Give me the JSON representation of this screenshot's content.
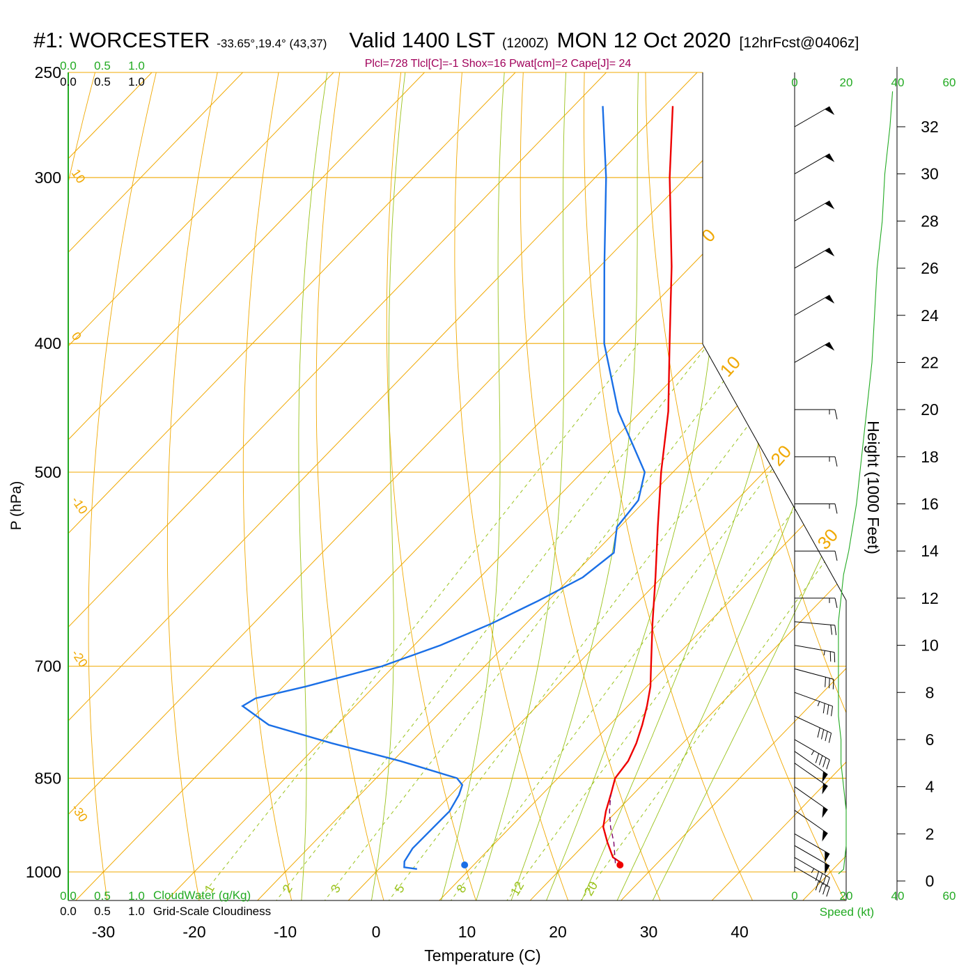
{
  "header": {
    "station": "#1: WORCESTER",
    "coords": "-33.65°,19.4° (43,37)",
    "valid": "Valid 1400 LST",
    "zulu": "(1200Z)",
    "date": "MON 12 Oct 2020",
    "forecast": "[12hrFcst@0406z]",
    "params": "Plcl=728 Tlcl[C]=-1 Shox=16 Pwat[cm]=2 Cape[J]= 24"
  },
  "colors": {
    "temperature": "#ee0000",
    "dewpoint": "#1a6fe6",
    "isotherm": "#f0a800",
    "dry_adiabat": "#f0a800",
    "moist_adiabat": "#99c21a",
    "mixing_ratio": "#99c21a",
    "parcel": "#7a0066",
    "cloud_scale": "#22aa22",
    "wind_barb": "#000000",
    "wind_speed_profile": "#22aa22",
    "isobar": "#f0a800"
  },
  "chart_data": {
    "type": "skew-t",
    "xlabel": "Temperature (C)",
    "ylabel": "P (hPa)",
    "right_axis_label": "Height (1000 Feet)",
    "pressure_ticks": [
      250,
      300,
      400,
      500,
      700,
      850,
      1000
    ],
    "temperature_ticks": [
      -30,
      -20,
      -10,
      0,
      10,
      20,
      30,
      40
    ],
    "height_ticks": [
      "0",
      "2",
      "4",
      "6",
      "8",
      "10",
      "12",
      "14",
      "16",
      "18",
      "20",
      "22",
      "24",
      "26",
      "28",
      "30",
      "32"
    ],
    "isotherm_labels": [
      "-30",
      "-20",
      "-10",
      "0",
      "10",
      "20",
      "30"
    ],
    "isotherm_label_text": {
      "-30": "-30",
      "-20": "-20",
      "-10": "-10",
      "0": "0",
      "10": "10",
      "20": "20",
      "30": "30"
    },
    "mixing_ratio_labels": [
      "1",
      "2",
      "3",
      "5",
      "8",
      "12",
      "20"
    ],
    "cloud_scale": {
      "top_green_labels": [
        "0.0",
        "0.5",
        "1.0"
      ],
      "top_black_labels": [
        "0.0",
        "0.5",
        "1.0"
      ],
      "bottom_green_labels": [
        "0.0",
        "0.5",
        "1.0"
      ],
      "bottom_black_labels": [
        "0.0",
        "0.5",
        "1.0"
      ],
      "cloudwater_label": "CloudWater (g/Kg)",
      "cloudiness_label": "Grid-Scale Cloudiness"
    },
    "wind_speed_axis": {
      "ticks": [
        "0",
        "20",
        "40",
        "60"
      ],
      "label": "Speed (kt)"
    },
    "temperature_profile": [
      {
        "p": 985,
        "t": 26.1
      },
      {
        "p": 975,
        "t": 24.5
      },
      {
        "p": 950,
        "t": 22.3
      },
      {
        "p": 925,
        "t": 20.2
      },
      {
        "p": 900,
        "t": 18.8
      },
      {
        "p": 875,
        "t": 17.6
      },
      {
        "p": 850,
        "t": 16.3
      },
      {
        "p": 825,
        "t": 15.9
      },
      {
        "p": 800,
        "t": 14.9
      },
      {
        "p": 775,
        "t": 13.6
      },
      {
        "p": 750,
        "t": 12.1
      },
      {
        "p": 725,
        "t": 10.4
      },
      {
        "p": 700,
        "t": 8.3
      },
      {
        "p": 650,
        "t": 3.9
      },
      {
        "p": 600,
        "t": -0.7
      },
      {
        "p": 550,
        "t": -5.8
      },
      {
        "p": 500,
        "t": -11.3
      },
      {
        "p": 450,
        "t": -17.0
      },
      {
        "p": 400,
        "t": -24.1
      },
      {
        "p": 350,
        "t": -32.1
      },
      {
        "p": 300,
        "t": -41.8
      },
      {
        "p": 265,
        "t": -49.1
      }
    ],
    "dewpoint_profile": [
      {
        "p": 995,
        "t": 4.2
      },
      {
        "p": 992,
        "t": 2.6
      },
      {
        "p": 982,
        "t": 2.0
      },
      {
        "p": 960,
        "t": 1.5
      },
      {
        "p": 900,
        "t": 1.6
      },
      {
        "p": 875,
        "t": 0.9
      },
      {
        "p": 860,
        "t": 0.2
      },
      {
        "p": 850,
        "t": -1.1
      },
      {
        "p": 825,
        "t": -9.2
      },
      {
        "p": 800,
        "t": -18.6
      },
      {
        "p": 775,
        "t": -27.5
      },
      {
        "p": 750,
        "t": -32.4
      },
      {
        "p": 740,
        "t": -31.8
      },
      {
        "p": 725,
        "t": -27.5
      },
      {
        "p": 700,
        "t": -21.3
      },
      {
        "p": 675,
        "t": -17.1
      },
      {
        "p": 650,
        "t": -13.8
      },
      {
        "p": 625,
        "t": -11.1
      },
      {
        "p": 600,
        "t": -8.7
      },
      {
        "p": 575,
        "t": -7.9
      },
      {
        "p": 550,
        "t": -10.3
      },
      {
        "p": 525,
        "t": -10.8
      },
      {
        "p": 500,
        "t": -13.1
      },
      {
        "p": 450,
        "t": -22.5
      },
      {
        "p": 400,
        "t": -31.3
      },
      {
        "p": 350,
        "t": -39.5
      },
      {
        "p": 300,
        "t": -48.8
      },
      {
        "p": 265,
        "t": -56.8
      }
    ],
    "parcel_path": [
      {
        "p": 985,
        "t": 25.4
      },
      {
        "p": 950,
        "t": 23.0
      },
      {
        "p": 925,
        "t": 21.0
      },
      {
        "p": 900,
        "t": 19.2
      },
      {
        "p": 875,
        "t": 17.6
      }
    ],
    "surface_temperature": {
      "p": 988,
      "t": 26.1
    },
    "surface_dewpoint": {
      "p": 988,
      "t": 9.0
    },
    "wind_profile": [
      {
        "h": 0.6,
        "dir": 300,
        "spd": 40
      },
      {
        "h": 1.0,
        "dir": 300,
        "spd": 45
      },
      {
        "h": 1.5,
        "dir": 300,
        "spd": 50
      },
      {
        "h": 2.0,
        "dir": 300,
        "spd": 50
      },
      {
        "h": 3.0,
        "dir": 305,
        "spd": 50
      },
      {
        "h": 4.0,
        "dir": 305,
        "spd": 50
      },
      {
        "h": 5.0,
        "dir": 305,
        "spd": 50
      },
      {
        "h": 5.5,
        "dir": 305,
        "spd": 50
      },
      {
        "h": 6.0,
        "dir": 300,
        "spd": 45
      },
      {
        "h": 7.0,
        "dir": 295,
        "spd": 40
      },
      {
        "h": 8.0,
        "dir": 290,
        "spd": 35
      },
      {
        "h": 9.0,
        "dir": 285,
        "spd": 30
      },
      {
        "h": 10.0,
        "dir": 280,
        "spd": 25
      },
      {
        "h": 11.0,
        "dir": 275,
        "spd": 20
      },
      {
        "h": 12.0,
        "dir": 270,
        "spd": 15
      },
      {
        "h": 14.0,
        "dir": 270,
        "spd": 10
      },
      {
        "h": 16.0,
        "dir": 270,
        "spd": 15
      },
      {
        "h": 18.0,
        "dir": 270,
        "spd": 15
      },
      {
        "h": 20.0,
        "dir": 270,
        "spd": 15
      },
      {
        "h": 22.0,
        "dir": 240,
        "spd": 50
      },
      {
        "h": 24.0,
        "dir": 240,
        "spd": 50
      },
      {
        "h": 26.0,
        "dir": 240,
        "spd": 50
      },
      {
        "h": 28.0,
        "dir": 240,
        "spd": 50
      },
      {
        "h": 30.0,
        "dir": 240,
        "spd": 50
      },
      {
        "h": 32.0,
        "dir": 240,
        "spd": 50
      }
    ],
    "wind_speed_profile": [
      {
        "h": 0.3,
        "spd": 17
      },
      {
        "h": 0.5,
        "spd": 19
      },
      {
        "h": 1.5,
        "spd": 20
      },
      {
        "h": 3.0,
        "spd": 20
      },
      {
        "h": 4.0,
        "spd": 19
      },
      {
        "h": 5.0,
        "spd": 18
      },
      {
        "h": 6.0,
        "spd": 18
      },
      {
        "h": 7.0,
        "spd": 17
      },
      {
        "h": 8.0,
        "spd": 17
      },
      {
        "h": 9.0,
        "spd": 17
      },
      {
        "h": 10.0,
        "spd": 17
      },
      {
        "h": 11.0,
        "spd": 17
      },
      {
        "h": 12.0,
        "spd": 18
      },
      {
        "h": 13.0,
        "spd": 19
      },
      {
        "h": 14.0,
        "spd": 21
      },
      {
        "h": 16.0,
        "spd": 24
      },
      {
        "h": 18.0,
        "spd": 26
      },
      {
        "h": 20.0,
        "spd": 28
      },
      {
        "h": 22.0,
        "spd": 30
      },
      {
        "h": 24.0,
        "spd": 31
      },
      {
        "h": 26.0,
        "spd": 32
      },
      {
        "h": 28.0,
        "spd": 34
      },
      {
        "h": 30.0,
        "spd": 35
      },
      {
        "h": 32.0,
        "spd": 37
      },
      {
        "h": 33.5,
        "spd": 38
      }
    ]
  }
}
